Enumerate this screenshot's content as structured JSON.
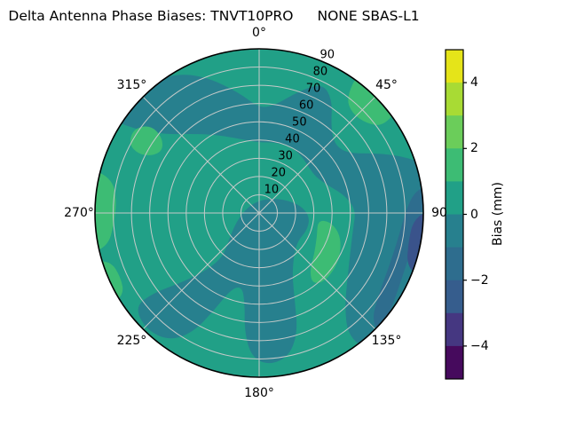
{
  "title": {
    "main": "Delta Antenna Phase Biases: TNVT10PRO",
    "secondary": "NONE SBAS-L1"
  },
  "chart_data": {
    "type": "heatmap",
    "projection": "polar",
    "title": "Delta Antenna Phase Biases: TNVT10PRO      NONE SBAS-L1",
    "colormap": "viridis",
    "levels": [
      -5,
      -4,
      -3,
      -2,
      -1,
      0,
      1,
      2,
      3,
      4,
      5
    ],
    "angular_ticks": [
      {
        "angle": 0,
        "label": "0°"
      },
      {
        "angle": 45,
        "label": "45°"
      },
      {
        "angle": 90,
        "label": "90"
      },
      {
        "angle": 135,
        "label": "135°"
      },
      {
        "angle": 180,
        "label": "180°"
      },
      {
        "angle": 225,
        "label": "225°"
      },
      {
        "angle": 270,
        "label": "270°"
      },
      {
        "angle": 315,
        "label": "315°"
      }
    ],
    "radial_ticks": [
      {
        "value": 10,
        "label": "10"
      },
      {
        "value": 20,
        "label": "20"
      },
      {
        "value": 30,
        "label": "30"
      },
      {
        "value": 40,
        "label": "40"
      },
      {
        "value": 50,
        "label": "50"
      },
      {
        "value": 60,
        "label": "60"
      },
      {
        "value": 70,
        "label": "70"
      },
      {
        "value": 80,
        "label": "80"
      },
      {
        "value": 90,
        "label": "90"
      }
    ],
    "radial_max": 90,
    "radial_label_angle": 22.5,
    "grid_color": "#c5cac9",
    "outline_color": "#000000",
    "base_region": {
      "bias_bin": "0 to 1",
      "color": "#21a087"
    },
    "regions": [
      {
        "bias_bin": "-1 to 0",
        "color": "#27808e",
        "points": [
          [
            302,
            1.07
          ],
          [
            315,
            1.07
          ],
          [
            328,
            1.0
          ],
          [
            338,
            0.9
          ],
          [
            350,
            0.75
          ],
          [
            0,
            0.64
          ],
          [
            8,
            0.66
          ],
          [
            18,
            0.78
          ],
          [
            26,
            0.88
          ],
          [
            33,
            0.82
          ],
          [
            40,
            0.68
          ],
          [
            48,
            0.62
          ],
          [
            56,
            0.65
          ],
          [
            63,
            0.8
          ],
          [
            68,
            0.93
          ],
          [
            74,
            1.07
          ],
          [
            100,
            1.07
          ],
          [
            125,
            1.07
          ],
          [
            142,
            1.07
          ],
          [
            144,
            0.92
          ],
          [
            138,
            0.78
          ],
          [
            128,
            0.68
          ],
          [
            115,
            0.61
          ],
          [
            100,
            0.58
          ],
          [
            88,
            0.59
          ],
          [
            78,
            0.53
          ],
          [
            68,
            0.45
          ],
          [
            58,
            0.41
          ],
          [
            48,
            0.41
          ],
          [
            38,
            0.43
          ],
          [
            26,
            0.45
          ],
          [
            12,
            0.44
          ],
          [
            0,
            0.43
          ],
          [
            350,
            0.45
          ],
          [
            340,
            0.49
          ],
          [
            330,
            0.55
          ],
          [
            320,
            0.63
          ],
          [
            311,
            0.73
          ],
          [
            305,
            0.87
          ]
        ]
      },
      {
        "bias_bin": "-1 to 0",
        "color": "#27808e",
        "points": [
          [
            30,
            0.1
          ],
          [
            60,
            0.17
          ],
          [
            80,
            0.26
          ],
          [
            95,
            0.31
          ],
          [
            110,
            0.31
          ],
          [
            125,
            0.29
          ],
          [
            140,
            0.33
          ],
          [
            152,
            0.43
          ],
          [
            158,
            0.58
          ],
          [
            162,
            0.76
          ],
          [
            168,
            0.89
          ],
          [
            176,
            0.93
          ],
          [
            183,
            0.88
          ],
          [
            187,
            0.73
          ],
          [
            189,
            0.56
          ],
          [
            193,
            0.46
          ],
          [
            200,
            0.49
          ],
          [
            205,
            0.66
          ],
          [
            209,
            0.83
          ],
          [
            215,
            0.95
          ],
          [
            224,
            0.99
          ],
          [
            233,
            0.95
          ],
          [
            233,
            0.81
          ],
          [
            228,
            0.63
          ],
          [
            222,
            0.46
          ],
          [
            220,
            0.34
          ],
          [
            228,
            0.25
          ],
          [
            245,
            0.16
          ],
          [
            270,
            0.1
          ],
          [
            310,
            0.07
          ],
          [
            350,
            0.07
          ]
        ]
      },
      {
        "bias_bin": "1 to 2",
        "color": "#3dbc74",
        "points": [
          [
            35,
            1.07
          ],
          [
            53,
            1.07
          ],
          [
            55,
            0.92
          ],
          [
            50,
            0.85
          ],
          [
            43,
            0.83
          ],
          [
            37,
            0.88
          ]
        ]
      },
      {
        "bias_bin": "1 to 2",
        "color": "#3dbc74",
        "points": [
          [
            256,
            1.07
          ],
          [
            285,
            1.07
          ],
          [
            283,
            0.92
          ],
          [
            275,
            0.87
          ],
          [
            265,
            0.89
          ],
          [
            258,
            0.94
          ]
        ]
      },
      {
        "bias_bin": "1 to 2",
        "color": "#3dbc74",
        "points": [
          [
            296,
            0.82
          ],
          [
            298,
            0.74
          ],
          [
            303,
            0.7
          ],
          [
            308,
            0.75
          ],
          [
            309,
            0.85
          ],
          [
            304,
            0.92
          ],
          [
            298,
            0.9
          ]
        ]
      },
      {
        "bias_bin": "1 to 2",
        "color": "#3dbc74",
        "points": [
          [
            97,
            0.36
          ],
          [
            112,
            0.38
          ],
          [
            127,
            0.42
          ],
          [
            139,
            0.47
          ],
          [
            143,
            0.54
          ],
          [
            136,
            0.58
          ],
          [
            121,
            0.57
          ],
          [
            106,
            0.52
          ],
          [
            97,
            0.44
          ]
        ]
      },
      {
        "bias_bin": "1 to 2",
        "color": "#3dbc74",
        "points": [
          [
            238,
            1.07
          ],
          [
            254,
            1.07
          ],
          [
            252,
            0.95
          ],
          [
            245,
            0.93
          ],
          [
            239,
            0.96
          ]
        ]
      },
      {
        "bias_bin": "-2 to -1",
        "color": "#2e6d8e",
        "points": [
          [
            80,
            1.07
          ],
          [
            135,
            1.07
          ],
          [
            134,
            0.95
          ],
          [
            124,
            0.88
          ],
          [
            111,
            0.855
          ],
          [
            98,
            0.865
          ],
          [
            88,
            0.9
          ],
          [
            82,
            0.96
          ]
        ]
      },
      {
        "bias_bin": "-3 to -2",
        "color": "#3a538b",
        "points": [
          [
            88,
            1.07
          ],
          [
            112,
            1.07
          ],
          [
            110,
            0.955
          ],
          [
            100,
            0.925
          ],
          [
            92,
            0.945
          ]
        ]
      }
    ],
    "colorbar": {
      "label": "Bias (mm)",
      "range_top": 5,
      "range_bottom": -5,
      "tick_values": [
        4,
        2,
        0,
        -2,
        -4
      ],
      "tick_labels": [
        "4",
        "2",
        "0",
        "−2",
        "−4"
      ],
      "segment_colors_top_to_bottom": [
        "#e5e419",
        "#a8db34",
        "#6bcd5a",
        "#3dbc74",
        "#21a087",
        "#27808e",
        "#2e6d8e",
        "#365d8d",
        "#453781",
        "#460a5d"
      ]
    }
  }
}
